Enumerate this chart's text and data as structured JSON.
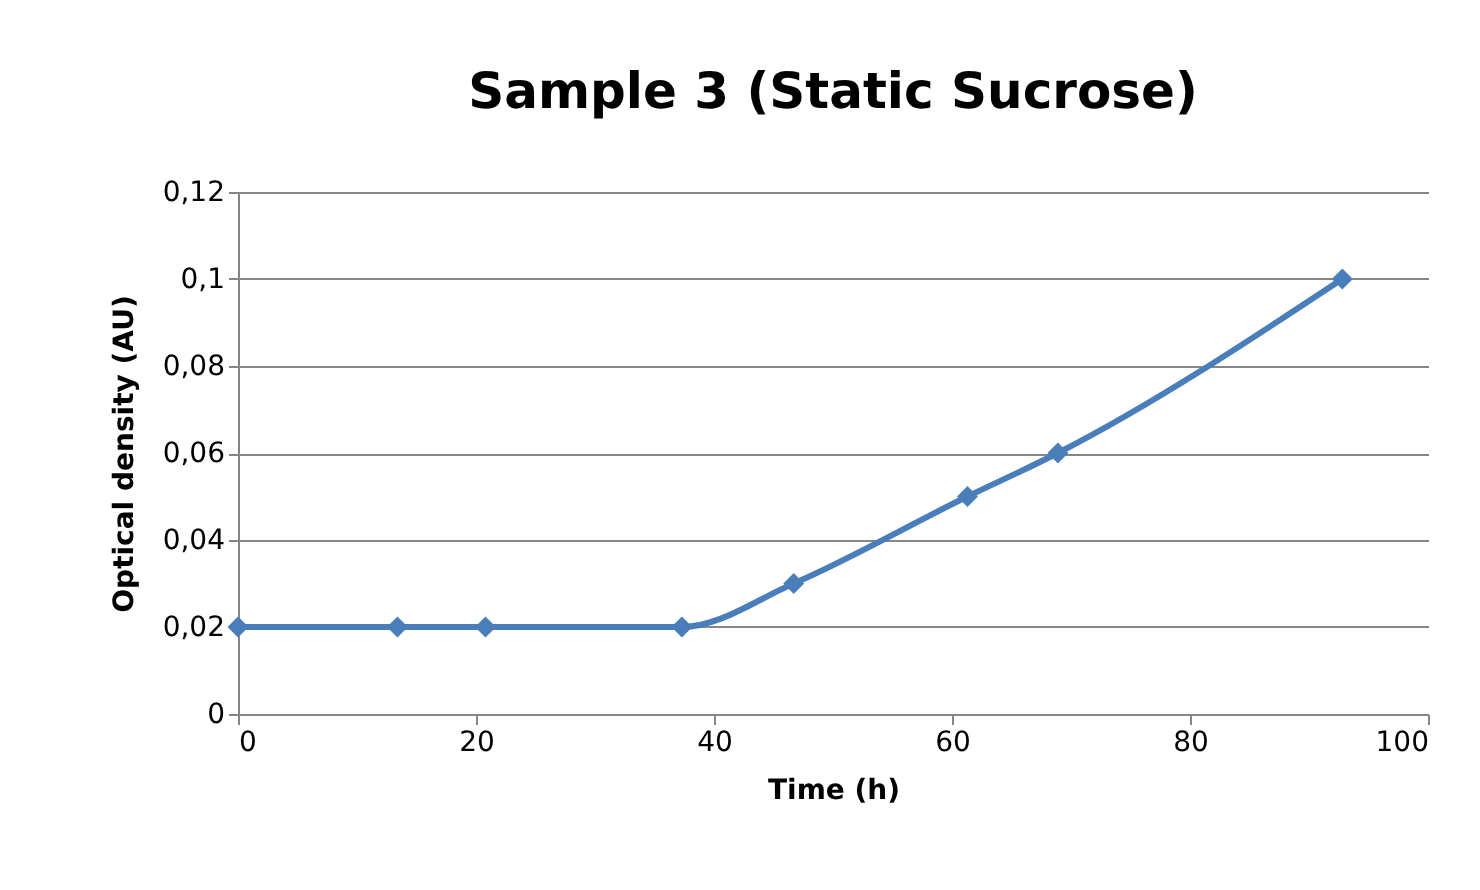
{
  "chart_data": {
    "type": "line",
    "title": "Sample 3 (Static Sucrose)",
    "xlabel": "Time (h)",
    "ylabel": "Optical density (AU)",
    "x": [
      0,
      13.4,
      20.8,
      37.3,
      46.7,
      61.3,
      68.9,
      92.8
    ],
    "series": [
      {
        "color": "#4a7ebb",
        "values": [
          0.02,
          0.02,
          0.02,
          0.02,
          0.03,
          0.05,
          0.06,
          0.1
        ]
      }
    ],
    "xlim": [
      0,
      100
    ],
    "xticks": [
      0,
      20,
      40,
      60,
      80,
      100
    ],
    "ylim": [
      0,
      0.12
    ],
    "yticks": [
      0,
      {
        "value": 0.02,
        "label": "0,02"
      },
      {
        "value": 0.04,
        "label": "0,04"
      },
      {
        "value": 0.06,
        "label": "0,06"
      },
      {
        "value": 0.08,
        "label": "0,08"
      },
      {
        "value": 0.1,
        "label": "0,1"
      },
      {
        "value": 0.12,
        "label": "0,12"
      }
    ],
    "grid": "y",
    "marker": "diamond",
    "line_style": "solid"
  }
}
